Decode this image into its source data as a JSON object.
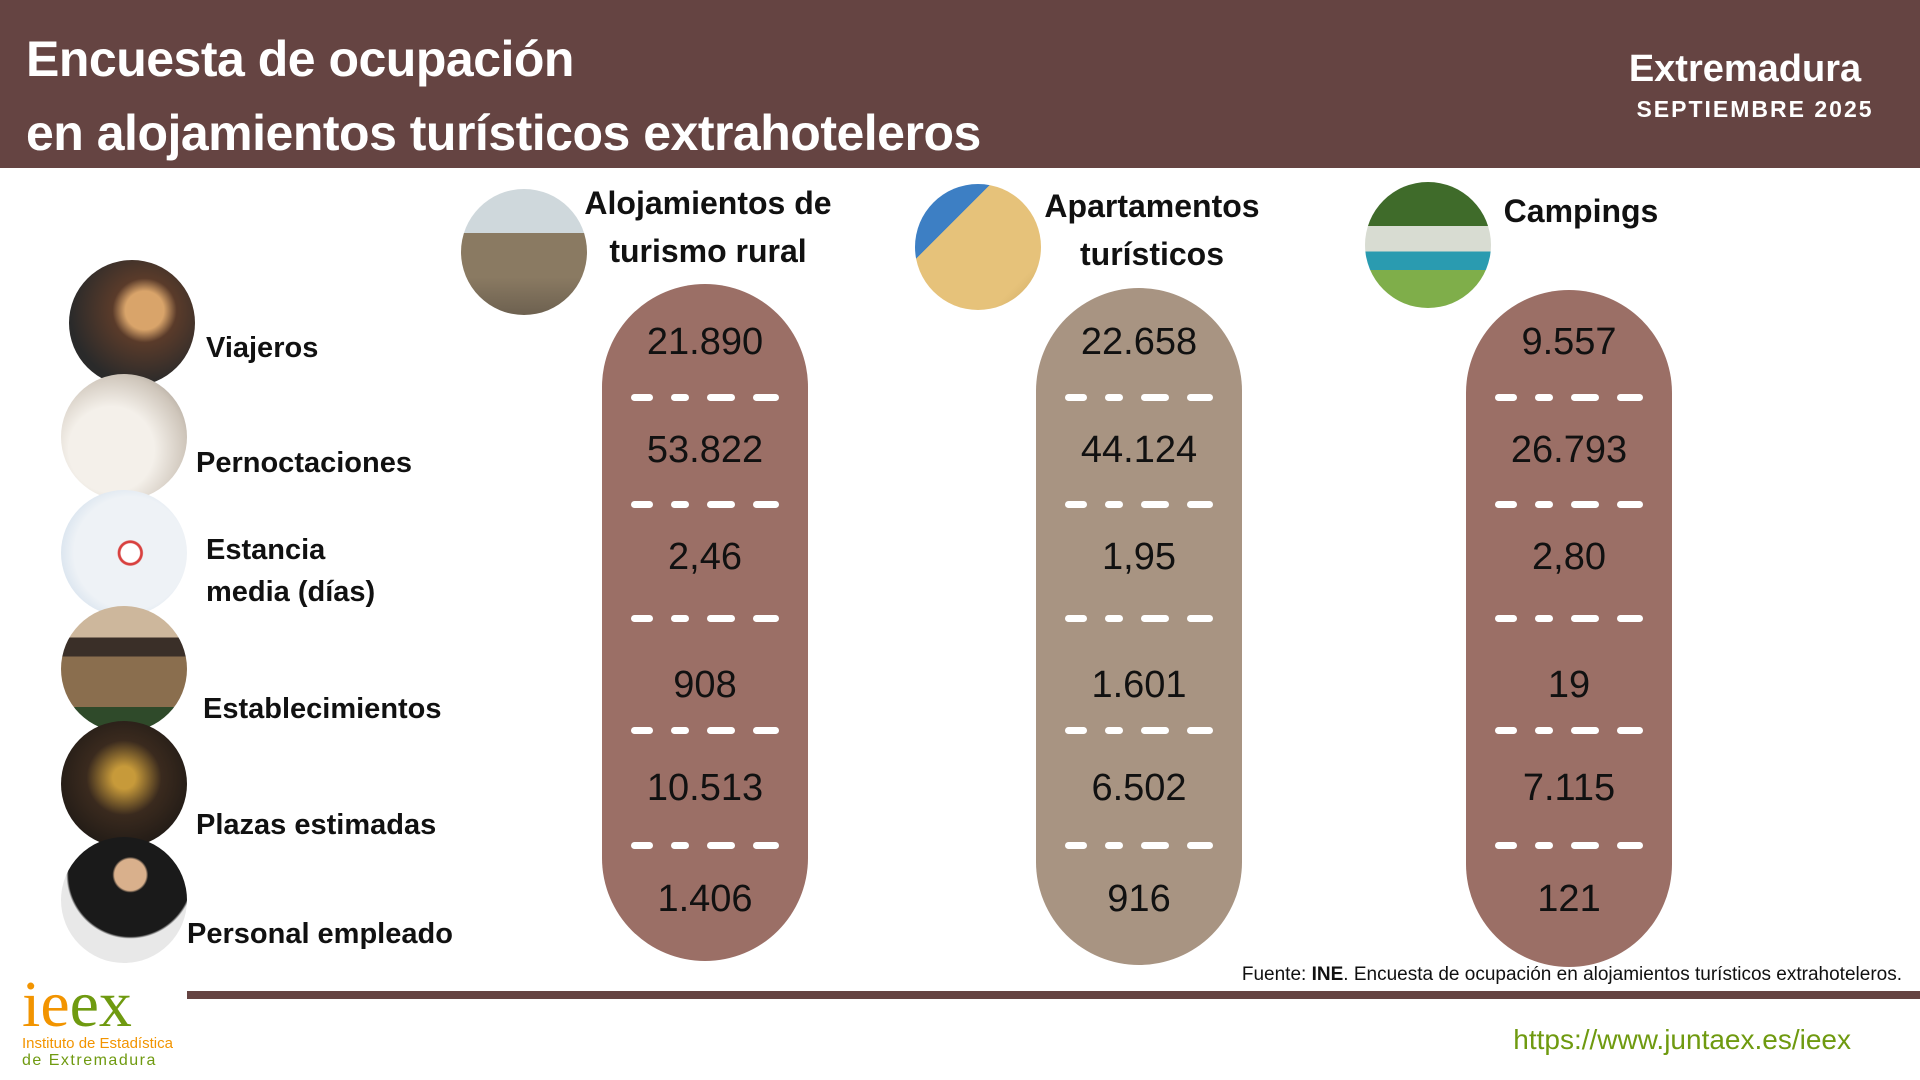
{
  "header": {
    "title_line1": "Encuesta de ocupación",
    "title_line2": "en alojamientos turísticos extrahoteleros",
    "region": "Extremadura",
    "period": "SEPTIEMBRE 2025"
  },
  "rows": [
    {
      "label": "Viajeros",
      "icon": "traveler-photo"
    },
    {
      "label": "Pernoctaciones",
      "icon": "bed-photo"
    },
    {
      "label_line1": "Estancia",
      "label_line2": "media (días)",
      "icon": "calendar-photo"
    },
    {
      "label": "Establecimientos",
      "icon": "hotel-photo"
    },
    {
      "label": "Plazas estimadas",
      "icon": "key-photo"
    },
    {
      "label": "Personal empleado",
      "icon": "receptionist-photo"
    }
  ],
  "columns": [
    {
      "title_line1": "Alojamientos de",
      "title_line2": "turismo rural",
      "color": "#9b6f66",
      "values": [
        "21.890",
        "53.822",
        "2,46",
        "908",
        "10.513",
        "1.406"
      ]
    },
    {
      "title_line1": "Apartamentos",
      "title_line2": "turísticos",
      "color": "#a89482",
      "values": [
        "22.658",
        "44.124",
        "1,95",
        "1.601",
        "6.502",
        "916"
      ]
    },
    {
      "title_line1": "Campings",
      "color": "#9b6f66",
      "values": [
        "9.557",
        "26.793",
        "2,80",
        "19",
        "7.115",
        "121"
      ]
    }
  ],
  "footer": {
    "source_prefix": "Fuente: ",
    "source_bold": "INE",
    "source_rest": ". Encuesta de ocupación en alojamientos turísticos extrahoteleros.",
    "url": "https://www.juntaex.es/ieex",
    "logo_text": "ieex",
    "logo_line1": "Instituto de Estadística",
    "logo_line2": "de Extremadura"
  }
}
